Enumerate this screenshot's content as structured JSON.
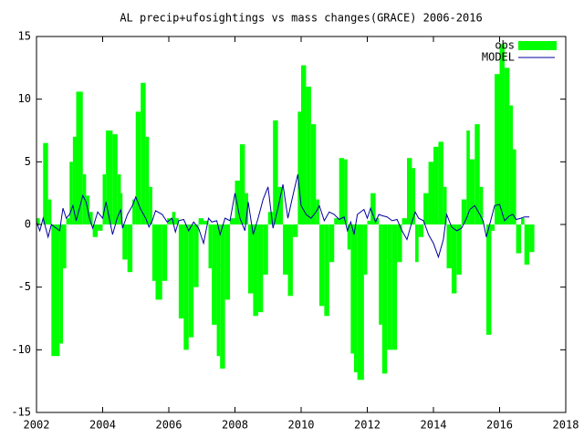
{
  "chart_data": {
    "type": "bar-line",
    "title": "AL precip+ufosightings vs mass changes(GRACE) 2006-2016",
    "x": [
      2002.0,
      2002.1,
      2002.2,
      2002.35,
      2002.45,
      2002.7,
      2002.8,
      2002.9,
      2003.0,
      2003.1,
      2003.2,
      2003.4,
      2003.5,
      2003.6,
      2003.7,
      2003.85,
      2004.0,
      2004.1,
      2004.3,
      2004.45,
      2004.55,
      2004.6,
      2004.75,
      2004.9,
      2005.0,
      2005.15,
      2005.3,
      2005.4,
      2005.5,
      2005.6,
      2005.8,
      2005.95,
      2006.1,
      2006.2,
      2006.3,
      2006.45,
      2006.6,
      2006.75,
      2006.9,
      2007.05,
      2007.2,
      2007.3,
      2007.45,
      2007.55,
      2007.7,
      2007.85,
      2008.0,
      2008.15,
      2008.3,
      2008.4,
      2008.55,
      2008.7,
      2008.85,
      2009.0,
      2009.15,
      2009.3,
      2009.45,
      2009.6,
      2009.75,
      2009.9,
      2010.0,
      2010.15,
      2010.3,
      2010.45,
      2010.55,
      2010.7,
      2010.85,
      2011.0,
      2011.15,
      2011.3,
      2011.4,
      2011.5,
      2011.6,
      2011.7,
      2011.9,
      2012.0,
      2012.1,
      2012.25,
      2012.35,
      2012.45,
      2012.6,
      2012.75,
      2012.9,
      2013.05,
      2013.2,
      2013.35,
      2013.45,
      2013.55,
      2013.7,
      2013.85,
      2014.0,
      2014.15,
      2014.3,
      2014.4,
      2014.55,
      2014.7,
      2014.85,
      2015.0,
      2015.1,
      2015.25,
      2015.4,
      2015.5,
      2015.6,
      2015.75,
      2015.85,
      2016.0,
      2016.15,
      2016.3,
      2016.4,
      2016.5,
      2016.65,
      2016.75,
      2016.9
    ],
    "series": [
      {
        "name": "obs",
        "color": "#00ff00",
        "style": "boxes",
        "values": [
          0.5,
          0,
          6.5,
          2,
          -10.5,
          -9.5,
          -3.5,
          0.5,
          5,
          7,
          10.6,
          4,
          2.3,
          1,
          -1,
          -0.5,
          4,
          7.5,
          7.2,
          4,
          2.5,
          -2.8,
          -3.8,
          2,
          9,
          11.3,
          7,
          3,
          -4.5,
          -6,
          -4.5,
          0.5,
          1,
          0.5,
          -7.5,
          -10,
          -9,
          -5,
          0.5,
          0.3,
          -3.5,
          -8,
          -10.5,
          -11.5,
          -6,
          0.5,
          3.5,
          6.4,
          2.5,
          -5.5,
          -7.3,
          -7,
          -4,
          1,
          8.3,
          3,
          -4,
          -5.7,
          -1,
          9,
          12.7,
          11,
          8,
          2,
          -6.5,
          -7.3,
          -3,
          0.5,
          5.3,
          5.2,
          -2,
          -10.3,
          -11.8,
          -12.4,
          -4,
          0.3,
          2.5,
          0.5,
          -8,
          -11.9,
          -10,
          -10,
          -3,
          0.5,
          5.3,
          4.5,
          -3,
          -1,
          2.5,
          5,
          6.2,
          6.6,
          3,
          -3.5,
          -5.5,
          -4,
          2,
          7.5,
          5.2,
          8,
          3,
          0,
          -8.8,
          -0.5,
          12,
          14.4,
          12.5,
          9.5,
          6,
          -2.3,
          0.5,
          -3.2,
          -2.2
        ]
      },
      {
        "name": "MODEL",
        "color": "#0000a0",
        "style": "line",
        "values": [
          0.2,
          -0.5,
          0.5,
          -1,
          0,
          -0.5,
          1.3,
          0.5,
          0.8,
          1.5,
          0.3,
          2.3,
          1.8,
          0.5,
          -0.3,
          1.0,
          0.5,
          1.8,
          -0.8,
          0.6,
          1.2,
          -0.3,
          0.8,
          1.5,
          2.2,
          1.2,
          0.5,
          -0.2,
          0.3,
          1.1,
          0.8,
          0.2,
          0.5,
          -0.6,
          0.3,
          0.4,
          -0.5,
          0.2,
          -0.3,
          -1.5,
          0.5,
          0.2,
          0.3,
          -0.8,
          0.5,
          0.3,
          2.5,
          0.5,
          -0.5,
          1.8,
          -0.8,
          0.5,
          2,
          3,
          -0.3,
          1.3,
          3.2,
          0.5,
          2.3,
          4,
          1.5,
          0.8,
          0.5,
          1,
          1.5,
          0.3,
          1,
          0.8,
          0.4,
          0.6,
          -0.5,
          0.2,
          -0.8,
          0.8,
          1.2,
          0.5,
          1.3,
          0.2,
          0.8,
          0.7,
          0.6,
          0.3,
          0.4,
          -0.5,
          -1.2,
          0.2,
          1,
          0.5,
          0.3,
          -0.8,
          -1.5,
          -2.6,
          -1.2,
          0.8,
          -0.2,
          -0.5,
          -0.3,
          0.5,
          1.2,
          1.5,
          0.8,
          0.3,
          -1.0,
          0.5,
          1.5,
          1.6,
          0.3,
          0.7,
          0.8,
          0.4,
          0.5,
          0.6,
          0.6
        ]
      }
    ],
    "xlim": [
      2002,
      2018
    ],
    "xticks": [
      2002,
      2004,
      2006,
      2008,
      2010,
      2012,
      2014,
      2016,
      2018
    ],
    "ylim": [
      -15,
      15
    ],
    "yticks": [
      -15,
      -10,
      -5,
      0,
      5,
      10,
      15
    ],
    "legend": "top-right"
  }
}
